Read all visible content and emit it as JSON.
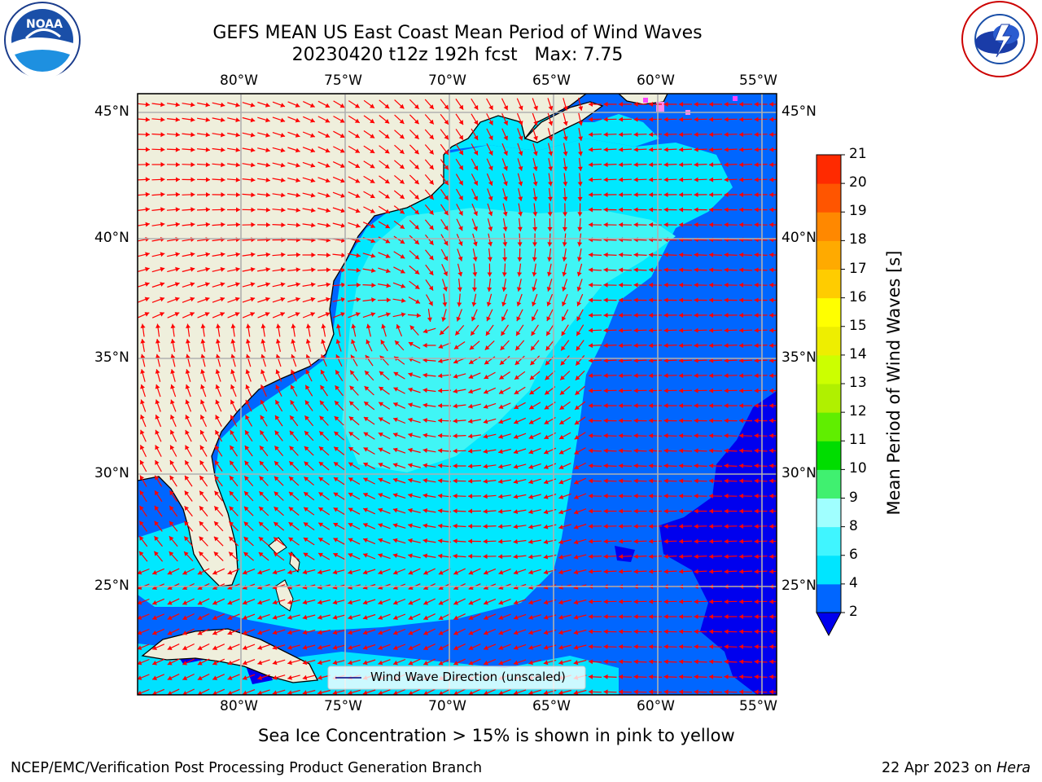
{
  "header": {
    "title_line1": "GEFS MEAN US East Coast Mean Period of Wind Waves",
    "title_line2": "20230420 t12z 192h fcst   Max: 7.75"
  },
  "logos": {
    "left": {
      "icon": "noaa-logo-icon",
      "text": "NOAA"
    },
    "right": {
      "icon": "national-weather-service-logo-icon",
      "text": "NATIONAL WEATHER SERVICE"
    }
  },
  "map": {
    "lon_labels": [
      "80°W",
      "75°W",
      "70°W",
      "65°W",
      "60°W",
      "55°W"
    ],
    "lat_labels": [
      "45°N",
      "40°N",
      "35°N",
      "30°N",
      "25°N"
    ],
    "legend_label": "Wind Wave Direction (unscaled)",
    "arrow_color": "#ff0000",
    "land_color": "#efefdc",
    "grid_color": "#b0b0b0"
  },
  "colorbar": {
    "label": "Mean Period of Wind Waves [s]",
    "ticks": [
      "2",
      "4",
      "6",
      "8",
      "9",
      "10",
      "11",
      "12",
      "13",
      "14",
      "15",
      "16",
      "17",
      "18",
      "19",
      "20",
      "21"
    ],
    "colors": [
      "#0066ff",
      "#00e5ff",
      "#40f5ff",
      "#a0ffff",
      "#40f070",
      "#00dd00",
      "#60ee00",
      "#b0f000",
      "#ccff00",
      "#eeee00",
      "#ffff00",
      "#ffcc00",
      "#ffaa00",
      "#ff8800",
      "#ff5500",
      "#ff2a00",
      "#ff0000"
    ],
    "under_color": "#0000ee"
  },
  "field_colors": {
    "lt2": "#0000ee",
    "p2_4": "#0066ff",
    "p4_6": "#00e8ff",
    "p6_8": "#40f5f5"
  },
  "footer": {
    "sea_ice_note": "Sea Ice Concentration > 15% is shown in pink to yellow",
    "producer": "NCEP/EMC/Verification Post Processing Product Generation Branch",
    "date": "22 Apr 2023 on",
    "machine": "Hera"
  }
}
